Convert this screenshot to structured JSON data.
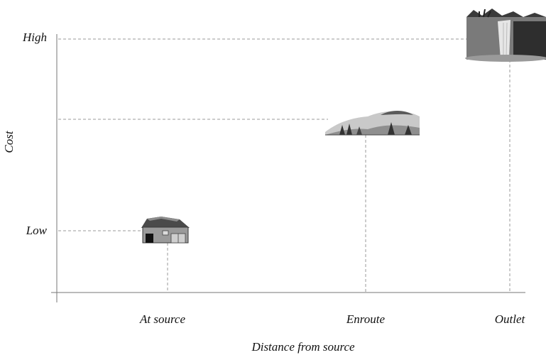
{
  "chart_data": {
    "type": "scatter",
    "ylabel": "Cost",
    "xlabel": "Distance from source",
    "y_tick_labels": [
      "Low",
      "High"
    ],
    "categories": [
      "At source",
      "Enroute",
      "Outlet"
    ],
    "points": [
      {
        "x": "At source",
        "cost_level": "low",
        "icon": "barn-icon"
      },
      {
        "x": "Enroute",
        "cost_level": "medium",
        "icon": "landscape-icon"
      },
      {
        "x": "Outlet",
        "cost_level": "high",
        "icon": "waterfall-icon"
      }
    ]
  },
  "colors": {
    "guide": "#9a9a9a",
    "axis": "#777777",
    "text": "#111111"
  }
}
